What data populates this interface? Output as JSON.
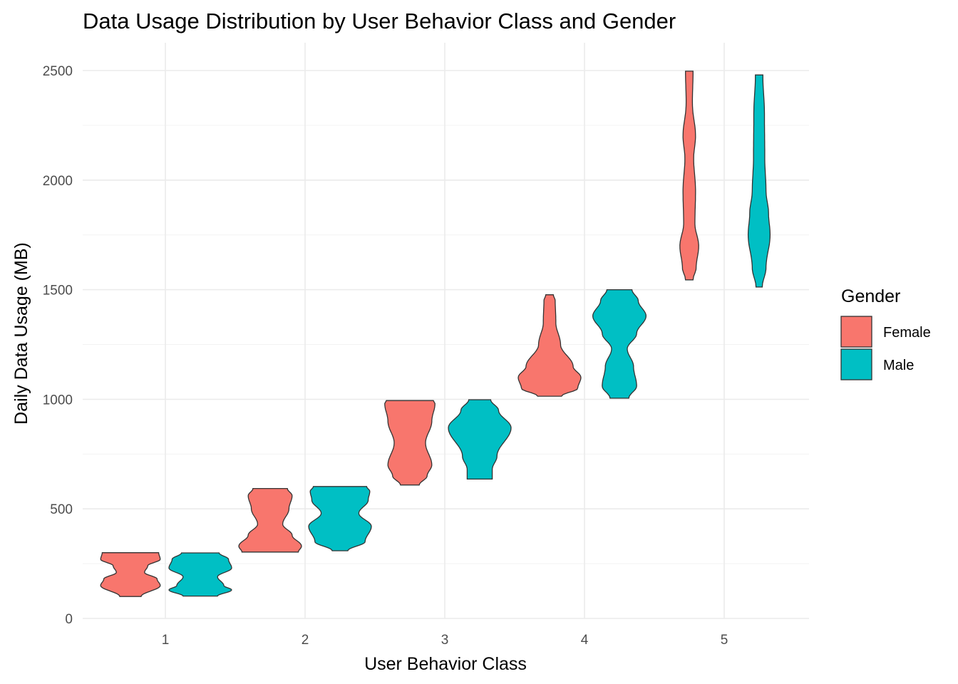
{
  "chart_data": {
    "type": "violin",
    "title": "Data Usage Distribution by User Behavior Class and Gender",
    "xlabel": "User Behavior Class",
    "ylabel": "Daily Data Usage (MB)",
    "categories": [
      "1",
      "2",
      "3",
      "4",
      "5"
    ],
    "ylim": [
      0,
      2600
    ],
    "yticks": [
      0,
      500,
      1000,
      1500,
      2000,
      2500
    ],
    "grid": true,
    "legend": {
      "title": "Gender",
      "placement": "right"
    },
    "series": [
      {
        "name": "Female",
        "color": "#F8766D",
        "violins": [
          {
            "category": "1",
            "min": 100,
            "max": 300,
            "profile": [
              [
                100,
                0.34
              ],
              [
                150,
                0.95
              ],
              [
                180,
                0.85
              ],
              [
                210,
                0.45
              ],
              [
                240,
                0.55
              ],
              [
                270,
                0.95
              ],
              [
                300,
                0.9
              ]
            ]
          },
          {
            "category": "2",
            "min": 303,
            "max": 593,
            "profile": [
              [
                303,
                0.9
              ],
              [
                330,
                1.0
              ],
              [
                380,
                0.7
              ],
              [
                430,
                0.4
              ],
              [
                500,
                0.6
              ],
              [
                560,
                0.7
              ],
              [
                593,
                0.55
              ]
            ]
          },
          {
            "category": "3",
            "min": 609,
            "max": 994,
            "profile": [
              [
                609,
                0.3
              ],
              [
                650,
                0.55
              ],
              [
                700,
                0.7
              ],
              [
                800,
                0.5
              ],
              [
                900,
                0.7
              ],
              [
                980,
                0.8
              ],
              [
                994,
                0.75
              ]
            ]
          },
          {
            "category": "4",
            "min": 1014,
            "max": 1477,
            "profile": [
              [
                1014,
                0.38
              ],
              [
                1050,
                0.9
              ],
              [
                1100,
                1.0
              ],
              [
                1150,
                0.75
              ],
              [
                1250,
                0.35
              ],
              [
                1350,
                0.2
              ],
              [
                1450,
                0.18
              ],
              [
                1477,
                0.12
              ]
            ]
          },
          {
            "category": "5",
            "min": 1545,
            "max": 2497,
            "profile": [
              [
                1545,
                0.12
              ],
              [
                1600,
                0.22
              ],
              [
                1700,
                0.3
              ],
              [
                1800,
                0.18
              ],
              [
                1950,
                0.2
              ],
              [
                2100,
                0.14
              ],
              [
                2200,
                0.2
              ],
              [
                2350,
                0.1
              ],
              [
                2497,
                0.12
              ]
            ]
          }
        ]
      },
      {
        "name": "Male",
        "color": "#00BFC4",
        "violins": [
          {
            "category": "1",
            "min": 102,
            "max": 299,
            "profile": [
              [
                102,
                0.55
              ],
              [
                130,
                1.0
              ],
              [
                150,
                0.75
              ],
              [
                190,
                0.55
              ],
              [
                230,
                1.0
              ],
              [
                270,
                0.9
              ],
              [
                299,
                0.6
              ]
            ]
          },
          {
            "category": "2",
            "min": 309,
            "max": 602,
            "profile": [
              [
                309,
                0.25
              ],
              [
                350,
                0.8
              ],
              [
                420,
                1.0
              ],
              [
                480,
                0.6
              ],
              [
                540,
                0.9
              ],
              [
                580,
                0.95
              ],
              [
                602,
                0.85
              ]
            ]
          },
          {
            "category": "3",
            "min": 636,
            "max": 998,
            "profile": [
              [
                636,
                0.4
              ],
              [
                680,
                0.4
              ],
              [
                740,
                0.55
              ],
              [
                870,
                1.0
              ],
              [
                950,
                0.6
              ],
              [
                998,
                0.35
              ]
            ]
          },
          {
            "category": "4",
            "min": 1005,
            "max": 1500,
            "profile": [
              [
                1005,
                0.3
              ],
              [
                1060,
                0.55
              ],
              [
                1150,
                0.45
              ],
              [
                1230,
                0.25
              ],
              [
                1300,
                0.55
              ],
              [
                1380,
                0.85
              ],
              [
                1450,
                0.6
              ],
              [
                1500,
                0.4
              ]
            ]
          },
          {
            "category": "5",
            "min": 1512,
            "max": 2480,
            "profile": [
              [
                1512,
                0.1
              ],
              [
                1600,
                0.22
              ],
              [
                1750,
                0.35
              ],
              [
                1850,
                0.3
              ],
              [
                1950,
                0.22
              ],
              [
                2100,
                0.18
              ],
              [
                2300,
                0.17
              ],
              [
                2480,
                0.12
              ]
            ]
          }
        ]
      }
    ]
  }
}
